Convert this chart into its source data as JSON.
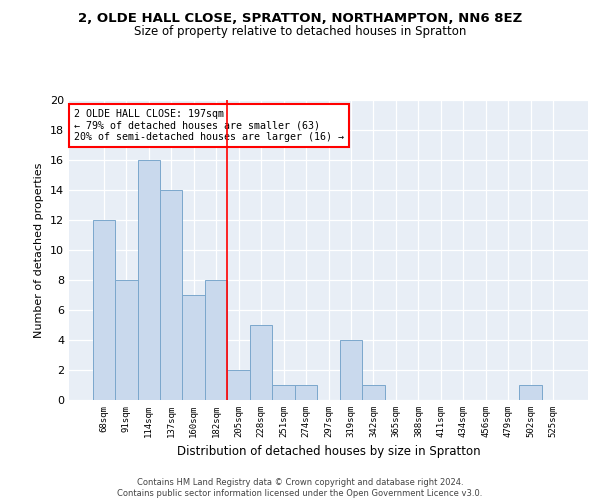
{
  "title1": "2, OLDE HALL CLOSE, SPRATTON, NORTHAMPTON, NN6 8EZ",
  "title2": "Size of property relative to detached houses in Spratton",
  "xlabel": "Distribution of detached houses by size in Spratton",
  "ylabel": "Number of detached properties",
  "categories": [
    "68sqm",
    "91sqm",
    "114sqm",
    "137sqm",
    "160sqm",
    "182sqm",
    "205sqm",
    "228sqm",
    "251sqm",
    "274sqm",
    "297sqm",
    "319sqm",
    "342sqm",
    "365sqm",
    "388sqm",
    "411sqm",
    "434sqm",
    "456sqm",
    "479sqm",
    "502sqm",
    "525sqm"
  ],
  "values": [
    12,
    8,
    16,
    14,
    7,
    8,
    2,
    5,
    1,
    1,
    0,
    4,
    1,
    0,
    0,
    0,
    0,
    0,
    0,
    1,
    0
  ],
  "bar_color": "#c9d9ed",
  "bar_edge_color": "#7ba7cc",
  "background_color": "#e8eef6",
  "vline_color": "red",
  "vline_x": 5.5,
  "annotation_text": "2 OLDE HALL CLOSE: 197sqm\n← 79% of detached houses are smaller (63)\n20% of semi-detached houses are larger (16) →",
  "annotation_box_color": "white",
  "annotation_box_edge": "red",
  "footer": "Contains HM Land Registry data © Crown copyright and database right 2024.\nContains public sector information licensed under the Open Government Licence v3.0.",
  "ylim": [
    0,
    20
  ],
  "yticks": [
    0,
    2,
    4,
    6,
    8,
    10,
    12,
    14,
    16,
    18,
    20
  ]
}
